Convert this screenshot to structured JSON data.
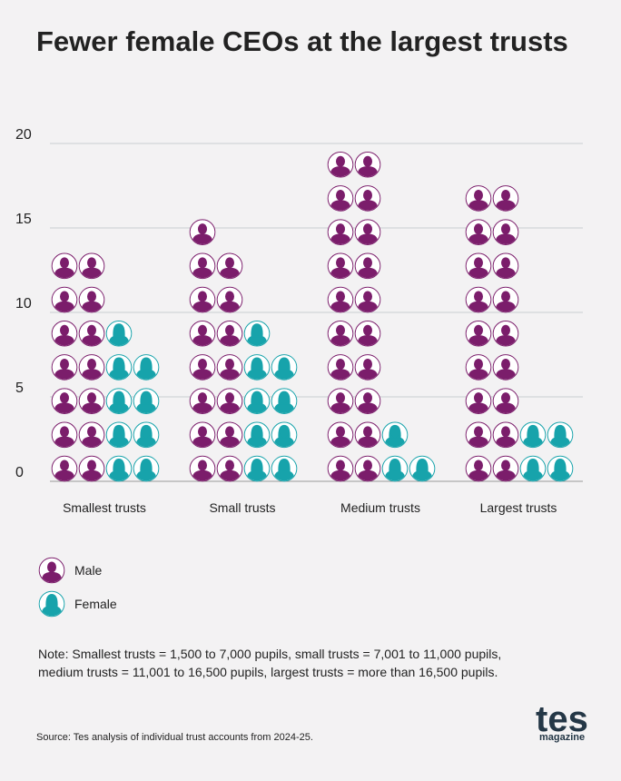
{
  "chart_data": {
    "type": "pictogram",
    "title": "Fewer female CEOs at the largest trusts",
    "categories": [
      "Smallest trusts",
      "Small trusts",
      "Medium trusts",
      "Largest trusts"
    ],
    "series": [
      {
        "name": "Male",
        "color": "#7b1d6b",
        "values": [
          14,
          15,
          20,
          18
        ]
      },
      {
        "name": "Female",
        "color": "#17a3ab",
        "values": [
          9,
          9,
          3,
          4
        ]
      }
    ],
    "ylim": [
      0,
      20
    ],
    "yticks": [
      0,
      5,
      10,
      15,
      20
    ],
    "grid": true,
    "note": [
      "Note: Smallest trusts = 1,500 to 7,000 pupils, small trusts = 7,001 to 11,000 pupils,",
      "medium trusts = 11,001 to 16,500 pupils, largest trusts = more than 16,500 pupils."
    ],
    "source": "Source: Tes analysis of individual trust accounts from 2024-25.",
    "logo": {
      "name": "tes",
      "tagline": "magazine"
    }
  }
}
